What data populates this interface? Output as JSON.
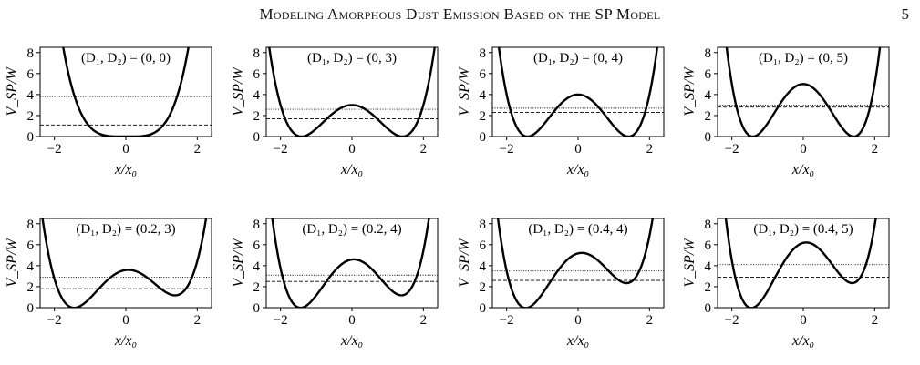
{
  "header": {
    "running_title": "Modeling Amorphous Dust Emission Based on the SP Model",
    "page_number": "5"
  },
  "figure": {
    "xlabel": "x/x₀",
    "ylabel": "V_SP/W"
  },
  "chart_data": [
    {
      "type": "line",
      "title": "(D₁, D₂) = (0, 0)",
      "D1": 0,
      "D2": 0,
      "xlim": [
        -2.4,
        2.4
      ],
      "ylim": [
        0,
        8.5
      ],
      "xticks": [
        -2,
        0,
        2
      ],
      "yticks": [
        0,
        2,
        4,
        6,
        8
      ],
      "dotted_level": 3.8,
      "dashed_level": 1.1
    },
    {
      "type": "line",
      "title": "(D₁, D₂) = (0, 3)",
      "D1": 0,
      "D2": 3,
      "xlim": [
        -2.4,
        2.4
      ],
      "ylim": [
        0,
        8.5
      ],
      "xticks": [
        -2,
        0,
        2
      ],
      "yticks": [
        0,
        2,
        4,
        6,
        8
      ],
      "dotted_level": 2.6,
      "dashed_level": 1.7
    },
    {
      "type": "line",
      "title": "(D₁, D₂) = (0, 4)",
      "D1": 0,
      "D2": 4,
      "xlim": [
        -2.4,
        2.4
      ],
      "ylim": [
        0,
        8.5
      ],
      "xticks": [
        -2,
        0,
        2
      ],
      "yticks": [
        0,
        2,
        4,
        6,
        8
      ],
      "dotted_level": 2.7,
      "dashed_level": 2.3
    },
    {
      "type": "line",
      "title": "(D₁, D₂) = (0, 5)",
      "D1": 0,
      "D2": 5,
      "xlim": [
        -2.4,
        2.4
      ],
      "ylim": [
        0,
        8.5
      ],
      "xticks": [
        -2,
        0,
        2
      ],
      "yticks": [
        0,
        2,
        4,
        6,
        8
      ],
      "dotted_level": 3.0,
      "dashed_level": 2.8
    },
    {
      "type": "line",
      "title": "(D₁, D₂) = (0.2, 3)",
      "D1": 0.2,
      "D2": 3,
      "xlim": [
        -2.4,
        2.4
      ],
      "ylim": [
        0,
        8.5
      ],
      "xticks": [
        -2,
        0,
        2
      ],
      "yticks": [
        0,
        2,
        4,
        6,
        8
      ],
      "dotted_level": 2.9,
      "dashed_level": 1.8
    },
    {
      "type": "line",
      "title": "(D₁, D₂) = (0.2, 4)",
      "D1": 0.2,
      "D2": 4,
      "xlim": [
        -2.4,
        2.4
      ],
      "ylim": [
        0,
        8.5
      ],
      "xticks": [
        -2,
        0,
        2
      ],
      "yticks": [
        0,
        2,
        4,
        6,
        8
      ],
      "dotted_level": 3.1,
      "dashed_level": 2.5
    },
    {
      "type": "line",
      "title": "(D₁, D₂) = (0.4, 4)",
      "D1": 0.4,
      "D2": 4,
      "xlim": [
        -2.4,
        2.4
      ],
      "ylim": [
        0,
        8.5
      ],
      "xticks": [
        -2,
        0,
        2
      ],
      "yticks": [
        0,
        2,
        4,
        6,
        8
      ],
      "dotted_level": 3.5,
      "dashed_level": 2.6
    },
    {
      "type": "line",
      "title": "(D₁, D₂) = (0.4, 5)",
      "D1": 0.4,
      "D2": 5,
      "xlim": [
        -2.4,
        2.4
      ],
      "ylim": [
        0,
        8.5
      ],
      "xticks": [
        -2,
        0,
        2
      ],
      "yticks": [
        0,
        2,
        4,
        6,
        8
      ],
      "dotted_level": 4.1,
      "dashed_level": 2.9
    }
  ]
}
